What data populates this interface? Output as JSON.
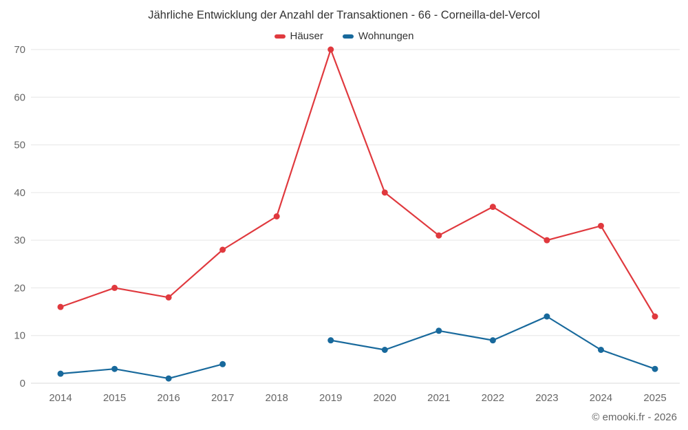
{
  "chart_data": {
    "type": "line",
    "title": "Jährliche Entwicklung der Anzahl der Transaktionen - 66 - Corneilla-del-Vercol",
    "categories": [
      "2014",
      "2015",
      "2016",
      "2017",
      "2018",
      "2019",
      "2020",
      "2021",
      "2022",
      "2023",
      "2024",
      "2025"
    ],
    "series": [
      {
        "name": "Häuser",
        "color": "#e0393e",
        "values": [
          16,
          20,
          18,
          28,
          35,
          70,
          40,
          31,
          37,
          30,
          33,
          14
        ]
      },
      {
        "name": "Wohnungen",
        "color": "#18699c",
        "values": [
          2,
          3,
          1,
          4,
          null,
          9,
          7,
          11,
          9,
          14,
          7,
          3
        ]
      }
    ],
    "xlabel": "",
    "ylabel": "",
    "ylim": [
      0,
      70
    ],
    "yticks": [
      0,
      10,
      20,
      30,
      40,
      50,
      60,
      70
    ],
    "grid": "horizontal",
    "legend_position": "top"
  },
  "footer": {
    "credits": "© emooki.fr - 2026"
  },
  "colors": {
    "grid": "#e6e6e6",
    "baseline": "#d8d8d8",
    "axis_text": "#666666",
    "title_text": "#333333",
    "background": "#ffffff"
  }
}
